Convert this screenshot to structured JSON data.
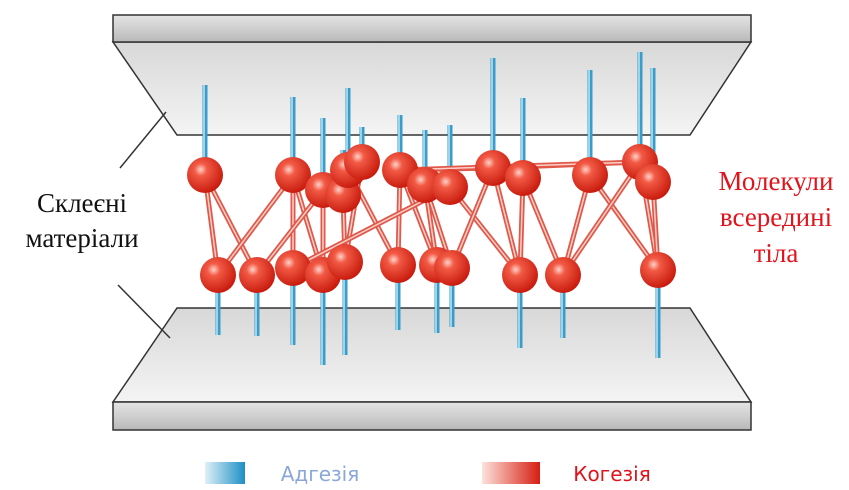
{
  "labels": {
    "left": [
      "Склеєні",
      "матеріали"
    ],
    "right": [
      "Молекули",
      "всередині",
      "тіла"
    ]
  },
  "legend": [
    {
      "label": "Адгезія"
    },
    {
      "label": "Когезія"
    }
  ]
}
